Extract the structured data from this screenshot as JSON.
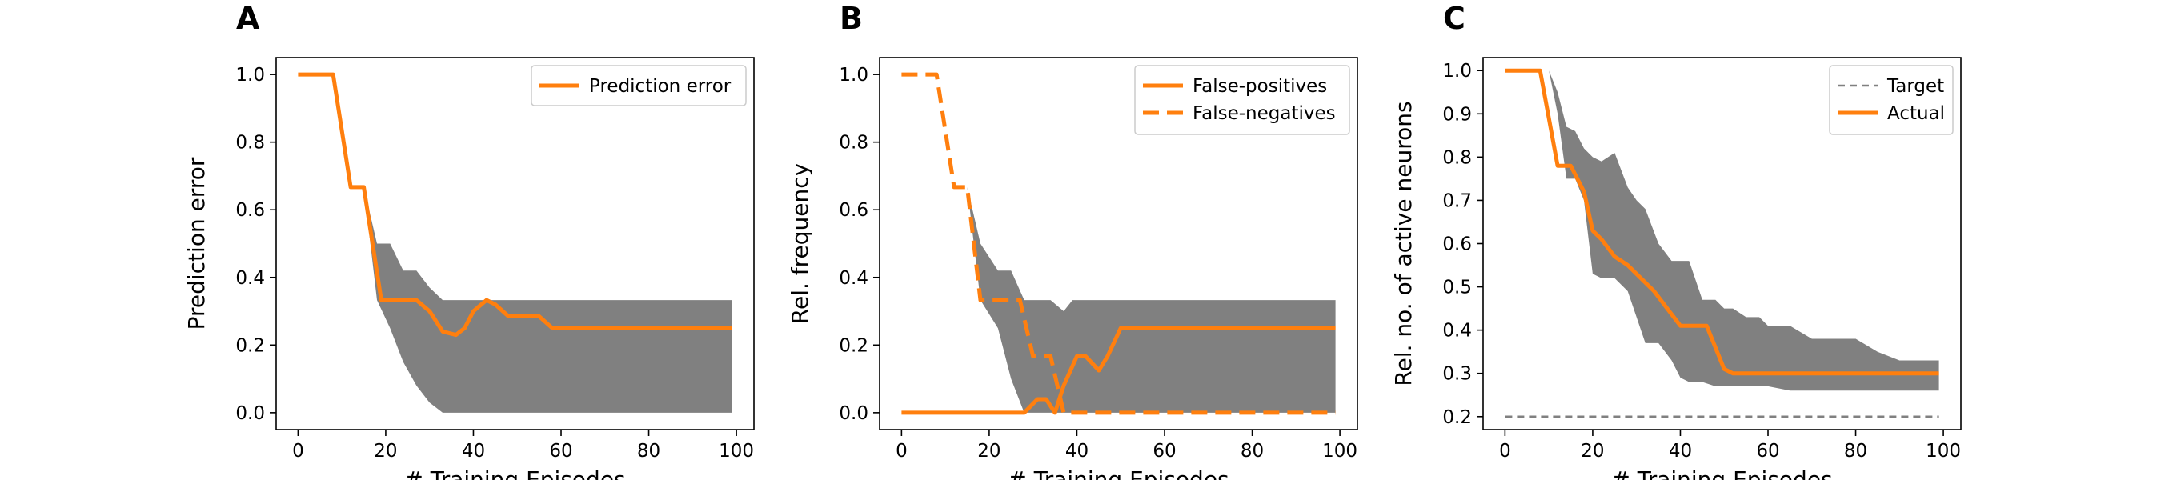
{
  "chart_data": [
    {
      "panel_letter": "A",
      "type": "line",
      "xlabel": "# Training Episodes",
      "ylabel": "Prediction error",
      "xlim": [
        -5,
        104
      ],
      "ylim": [
        -0.05,
        1.05
      ],
      "xticks": [
        "0",
        "20",
        "40",
        "60",
        "80",
        "100"
      ],
      "yticks": [
        "0.0",
        "0.2",
        "0.4",
        "0.6",
        "0.8",
        "1.0"
      ],
      "legend_position": "top-right",
      "band": {
        "color": "#808080",
        "x": [
          15,
          18,
          21,
          24,
          27,
          30,
          33,
          36,
          99
        ],
        "upper": [
          0.667,
          0.5,
          0.5,
          0.42,
          0.42,
          0.37,
          0.333,
          0.333,
          0.333
        ],
        "lower": [
          0.667,
          0.333,
          0.25,
          0.15,
          0.08,
          0.03,
          0.0,
          0.0,
          0.0
        ]
      },
      "series": [
        {
          "name": "Prediction error",
          "color": "#ff7f0e",
          "style": "solid",
          "x": [
            0,
            8,
            12,
            15,
            19,
            27,
            30,
            33,
            36,
            38,
            40,
            43,
            45,
            48,
            53,
            55,
            58,
            99
          ],
          "values": [
            1.0,
            1.0,
            0.667,
            0.667,
            0.333,
            0.333,
            0.3,
            0.24,
            0.23,
            0.25,
            0.3,
            0.333,
            0.32,
            0.285,
            0.285,
            0.285,
            0.25,
            0.25
          ]
        }
      ]
    },
    {
      "panel_letter": "B",
      "type": "line",
      "xlabel": "# Training Episodes",
      "ylabel": "Rel. frequency",
      "xlim": [
        -5,
        104
      ],
      "ylim": [
        -0.05,
        1.05
      ],
      "xticks": [
        "0",
        "20",
        "40",
        "60",
        "80",
        "100"
      ],
      "yticks": [
        "0.0",
        "0.2",
        "0.4",
        "0.6",
        "0.8",
        "1.0"
      ],
      "legend_position": "top-right",
      "band": {
        "color": "#808080",
        "x": [
          15,
          18,
          22,
          25,
          28,
          32,
          34,
          37,
          39,
          40,
          99
        ],
        "upper": [
          0.667,
          0.5,
          0.42,
          0.42,
          0.333,
          0.333,
          0.333,
          0.3,
          0.333,
          0.333,
          0.333
        ],
        "lower": [
          0.667,
          0.333,
          0.25,
          0.1,
          0.0,
          0.0,
          0.0,
          0.0,
          0.0,
          0.0,
          0.0
        ]
      },
      "series": [
        {
          "name": "False-positives",
          "color": "#ff7f0e",
          "style": "solid",
          "x": [
            0,
            28,
            31,
            33,
            35,
            37,
            40,
            42,
            45,
            47,
            50,
            99
          ],
          "values": [
            0.0,
            0.0,
            0.04,
            0.04,
            0.0,
            0.08,
            0.167,
            0.167,
            0.125,
            0.167,
            0.25,
            0.25
          ]
        },
        {
          "name": "False-negatives",
          "color": "#ff7f0e",
          "style": "dashed",
          "x": [
            0,
            8,
            12,
            15,
            18,
            27,
            30,
            34,
            37,
            39,
            42,
            99
          ],
          "values": [
            1.0,
            1.0,
            0.667,
            0.667,
            0.333,
            0.333,
            0.167,
            0.167,
            0.0,
            0.0,
            0.0,
            0.0
          ]
        }
      ]
    },
    {
      "panel_letter": "C",
      "type": "line",
      "xlabel": "# Training Episodes",
      "ylabel": "Rel. no. of active neurons",
      "xlim": [
        -5,
        104
      ],
      "ylim": [
        0.17,
        1.03
      ],
      "xticks": [
        "0",
        "20",
        "40",
        "60",
        "80",
        "100"
      ],
      "yticks": [
        "0.2",
        "0.3",
        "0.4",
        "0.5",
        "0.6",
        "0.7",
        "0.8",
        "0.9",
        "1.0"
      ],
      "legend_position": "top-right",
      "band": {
        "color": "#808080",
        "x": [
          8,
          10,
          12,
          14,
          16,
          18,
          20,
          22,
          25,
          28,
          30,
          32,
          35,
          38,
          40,
          42,
          45,
          48,
          50,
          52,
          55,
          58,
          60,
          65,
          70,
          75,
          80,
          85,
          90,
          95,
          99
        ],
        "upper": [
          1.0,
          1.0,
          0.95,
          0.87,
          0.86,
          0.82,
          0.8,
          0.79,
          0.81,
          0.73,
          0.7,
          0.68,
          0.6,
          0.56,
          0.56,
          0.56,
          0.47,
          0.47,
          0.45,
          0.45,
          0.43,
          0.43,
          0.41,
          0.41,
          0.38,
          0.38,
          0.38,
          0.35,
          0.33,
          0.33,
          0.33
        ],
        "lower": [
          1.0,
          1.0,
          0.9,
          0.75,
          0.75,
          0.7,
          0.53,
          0.52,
          0.52,
          0.49,
          0.43,
          0.37,
          0.37,
          0.33,
          0.29,
          0.28,
          0.28,
          0.27,
          0.27,
          0.27,
          0.27,
          0.27,
          0.27,
          0.26,
          0.26,
          0.26,
          0.26,
          0.26,
          0.26,
          0.26,
          0.26
        ]
      },
      "series": [
        {
          "name": "Target",
          "color": "#808080",
          "style": "dashed",
          "x": [
            0,
            99
          ],
          "values": [
            0.2,
            0.2
          ]
        },
        {
          "name": "Actual",
          "color": "#ff7f0e",
          "style": "solid",
          "x": [
            0,
            8,
            12,
            15,
            18,
            20,
            22,
            25,
            28,
            31,
            34,
            37,
            40,
            43,
            46,
            48,
            50,
            52,
            55,
            60,
            65,
            70,
            80,
            90,
            99
          ],
          "values": [
            1.0,
            1.0,
            0.78,
            0.78,
            0.72,
            0.63,
            0.61,
            0.57,
            0.55,
            0.52,
            0.49,
            0.45,
            0.41,
            0.41,
            0.41,
            0.36,
            0.31,
            0.3,
            0.3,
            0.3,
            0.3,
            0.3,
            0.3,
            0.3,
            0.3
          ]
        }
      ]
    }
  ]
}
